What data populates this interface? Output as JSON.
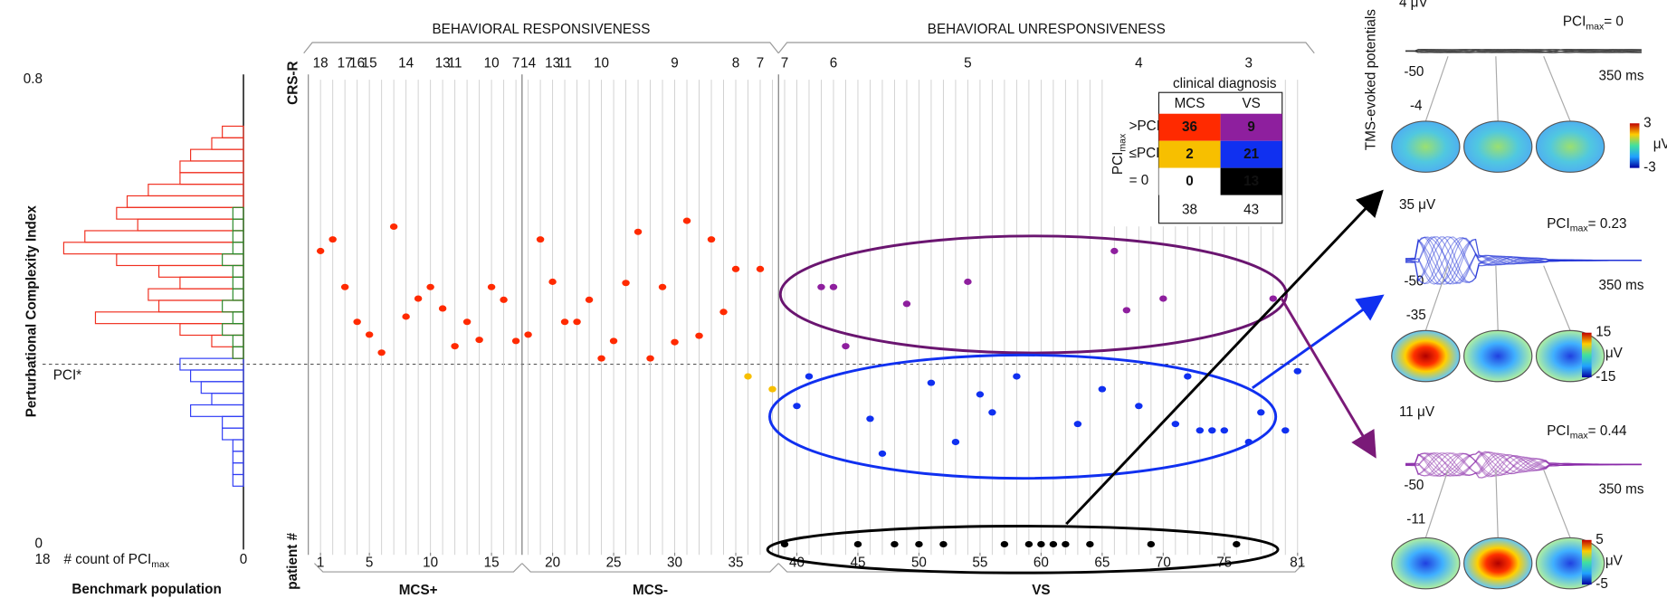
{
  "chart_data": [
    {
      "type": "histogram",
      "orientation": "horizontal",
      "ylabel": "Perturbational Complexity Index",
      "xlabel": "# count of PCI",
      "xlabel_sub": "max",
      "caption": "Benchmark population",
      "bins": [
        0.1,
        0.12,
        0.14,
        0.16,
        0.18,
        0.2,
        0.22,
        0.24,
        0.26,
        0.28,
        0.3,
        0.32,
        0.34,
        0.36,
        0.38,
        0.4,
        0.42,
        0.44,
        0.46,
        0.48,
        0.5,
        0.52,
        0.54,
        0.56,
        0.58,
        0.6,
        0.62,
        0.64,
        0.66,
        0.68,
        0.7,
        0.72
      ],
      "series": [
        {
          "color": "#2f3cf5",
          "values": [
            1,
            1,
            1,
            1,
            2,
            2,
            5,
            3,
            4,
            5,
            6,
            0,
            0,
            0,
            0,
            0,
            0,
            0,
            0,
            0,
            0,
            0,
            0,
            0,
            0,
            0,
            0,
            0,
            0,
            0,
            0
          ]
        },
        {
          "color": "#f03020",
          "values": [
            0,
            0,
            0,
            0,
            0,
            0,
            0,
            0,
            0,
            0,
            0,
            1,
            3,
            6,
            14,
            8,
            9,
            6,
            8,
            12,
            17,
            15,
            10,
            12,
            11,
            9,
            6,
            6,
            5,
            3,
            2
          ]
        },
        {
          "color": "#2a8a2a",
          "values": [
            0,
            0,
            0,
            0,
            0,
            0,
            0,
            0,
            0,
            0,
            0,
            1,
            1,
            2,
            1,
            2,
            1,
            1,
            1,
            2,
            1,
            1,
            1,
            1,
            0,
            0,
            0,
            0,
            0,
            0,
            0
          ]
        }
      ],
      "xlim": [
        18,
        0
      ],
      "xticks": [
        18,
        0
      ],
      "ylim": [
        0,
        0.8
      ],
      "yticks": [
        0,
        0.8
      ],
      "reference": {
        "value": 0.31,
        "label": "PCI*"
      }
    },
    {
      "type": "scatter",
      "headers": [
        "BEHAVIORAL RESPONSIVENESS",
        "BEHAVIORAL UNRESPONSIVENESS"
      ],
      "crs_label": "CRS-R",
      "xlabel": "patient #",
      "x": [
        1,
        2,
        3,
        4,
        5,
        6,
        7,
        8,
        9,
        10,
        11,
        12,
        13,
        14,
        15,
        16,
        17,
        18,
        19,
        20,
        21,
        22,
        23,
        24,
        25,
        26,
        27,
        28,
        29,
        30,
        31,
        32,
        33,
        34,
        35,
        36,
        37,
        38,
        39,
        40,
        41,
        42,
        43,
        44,
        45,
        46,
        47,
        48,
        49,
        50,
        51,
        52,
        53,
        54,
        55,
        56,
        57,
        58,
        59,
        60,
        61,
        62,
        63,
        64,
        65,
        66,
        67,
        68,
        69,
        70,
        71,
        72,
        73,
        74,
        75,
        76,
        77,
        78,
        79,
        80,
        81
      ],
      "values": [
        0.505,
        0.525,
        0.443,
        0.383,
        0.361,
        0.33,
        0.547,
        0.392,
        0.423,
        0.443,
        0.406,
        0.341,
        0.383,
        0.352,
        0.443,
        0.421,
        0.35,
        0.361,
        0.525,
        0.452,
        0.383,
        0.383,
        0.421,
        0.32,
        0.35,
        0.45,
        0.538,
        0.32,
        0.443,
        0.348,
        0.557,
        0.359,
        0.525,
        0.4,
        0.474,
        0.289,
        0.474,
        0.267,
        0,
        0.238,
        0.289,
        0.443,
        0.443,
        0.341,
        0,
        0.216,
        0.156,
        0,
        0.414,
        0,
        0.278,
        0,
        0.176,
        0.452,
        0.258,
        0.227,
        0,
        0.289,
        0,
        0,
        0,
        0,
        0.207,
        0,
        0.267,
        0.505,
        0.403,
        0.238,
        0,
        0.423,
        0.207,
        0.289,
        0.196,
        0.196,
        0.196,
        0,
        0.176,
        0.227,
        0.423,
        0.196,
        0.298
      ],
      "colors": [
        "#ff2a00",
        "#ff2a00",
        "#ff2a00",
        "#ff2a00",
        "#ff2a00",
        "#ff2a00",
        "#ff2a00",
        "#ff2a00",
        "#ff2a00",
        "#ff2a00",
        "#ff2a00",
        "#ff2a00",
        "#ff2a00",
        "#ff2a00",
        "#ff2a00",
        "#ff2a00",
        "#ff2a00",
        "#ff2a00",
        "#ff2a00",
        "#ff2a00",
        "#ff2a00",
        "#ff2a00",
        "#ff2a00",
        "#ff2a00",
        "#ff2a00",
        "#ff2a00",
        "#ff2a00",
        "#ff2a00",
        "#ff2a00",
        "#ff2a00",
        "#ff2a00",
        "#ff2a00",
        "#ff2a00",
        "#ff2a00",
        "#ff2a00",
        "#f7bf00",
        "#ff2a00",
        "#f7bf00",
        "#000000",
        "#1030f0",
        "#1030f0",
        "#8e1f9e",
        "#8e1f9e",
        "#8e1f9e",
        "#000000",
        "#1030f0",
        "#1030f0",
        "#000000",
        "#8e1f9e",
        "#000000",
        "#1030f0",
        "#000000",
        "#1030f0",
        "#8e1f9e",
        "#1030f0",
        "#1030f0",
        "#000000",
        "#1030f0",
        "#000000",
        "#000000",
        "#000000",
        "#000000",
        "#1030f0",
        "#000000",
        "#1030f0",
        "#8e1f9e",
        "#8e1f9e",
        "#1030f0",
        "#000000",
        "#8e1f9e",
        "#1030f0",
        "#1030f0",
        "#1030f0",
        "#1030f0",
        "#1030f0",
        "#000000",
        "#1030f0",
        "#1030f0",
        "#8e1f9e",
        "#1030f0",
        "#1030f0"
      ],
      "xlim": [
        0,
        82
      ],
      "ylim": [
        0,
        0.8
      ],
      "xticks": [
        1,
        5,
        10,
        15,
        20,
        25,
        30,
        35,
        40,
        45,
        50,
        55,
        60,
        65,
        70,
        75,
        81
      ],
      "crs_r": {
        "x": [
          1,
          3,
          4,
          5,
          8,
          11,
          12,
          15,
          17,
          18,
          20,
          21,
          24,
          30,
          35,
          37,
          39,
          43,
          54,
          68,
          77
        ],
        "values": [
          18,
          17,
          16,
          15,
          14,
          13,
          11,
          10,
          7,
          14,
          13,
          11,
          10,
          9,
          8,
          7,
          7,
          6,
          5,
          4,
          3
        ]
      },
      "groups": [
        {
          "label": "MCS+",
          "first": 1,
          "last": 17
        },
        {
          "label": "MCS-",
          "first": 18,
          "last": 38
        },
        {
          "label": "VS",
          "first": 39,
          "last": 81
        }
      ]
    }
  ],
  "table": {
    "title": "clinical diagnosis",
    "columns": [
      "MCS",
      "VS"
    ],
    "row_header": "PCI",
    "row_header_sub": "max",
    "rows": [
      {
        "label": ">PCI*",
        "values": [
          36,
          9
        ],
        "colors": [
          "#ff2a00",
          "#8e1f9e"
        ]
      },
      {
        "label": "≤PCI*",
        "values": [
          2,
          21
        ],
        "colors": [
          "#f7bf00",
          "#1030f0"
        ]
      },
      {
        "label": "= 0",
        "values": [
          0,
          13
        ],
        "colors": [
          "#ffffff",
          "#000000"
        ]
      }
    ],
    "totals": [
      38,
      43
    ]
  },
  "panels": {
    "ylabel": "TMS-evoked potentials",
    "items": [
      {
        "scale": "4 μV",
        "pci": "PCI",
        "pci_sub": "max",
        "pci_value": "= 0",
        "t_start": "-50",
        "t_end": "350 ms",
        "scale_neg": "-4",
        "cbar_max": "3",
        "cbar_min": "-3",
        "cbar_unit": "μV",
        "color": "#333333"
      },
      {
        "scale": "35 μV",
        "pci": "PCI",
        "pci_sub": "max",
        "pci_value": "= 0.23",
        "t_start": "-50",
        "t_end": "350 ms",
        "scale_neg": "-35",
        "cbar_max": "15",
        "cbar_min": "-15",
        "cbar_unit": "μV",
        "color": "#2030d8"
      },
      {
        "scale": "11 μV",
        "pci": "PCI",
        "pci_sub": "max",
        "pci_value": "= 0.44",
        "t_start": "-50",
        "t_end": "350 ms",
        "scale_neg": "-11",
        "cbar_max": "5",
        "cbar_min": "-5",
        "cbar_unit": "μV",
        "color": "#8a2aa8"
      }
    ]
  }
}
